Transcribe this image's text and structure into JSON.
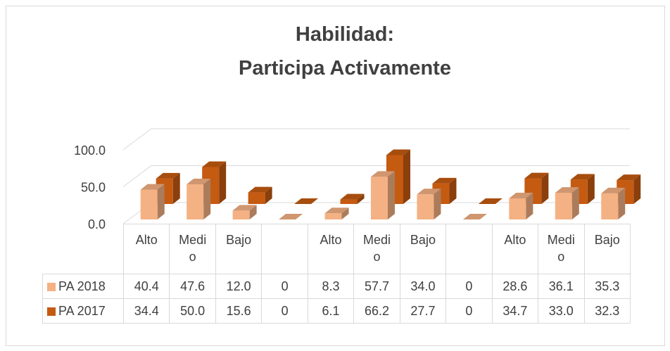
{
  "chart_data": {
    "type": "bar3d",
    "title": [
      "Habilidad:",
      "Participa Activamente"
    ],
    "categories": [
      "Alto",
      "Medio",
      "Bajo",
      null,
      "Alto",
      "Medio",
      "Bajo",
      null,
      "Alto",
      "Medio",
      "Bajo"
    ],
    "series": [
      {
        "name": "PA 2018",
        "color": "#f4b183",
        "values": [
          40.4,
          47.6,
          12.0,
          0,
          8.3,
          57.7,
          34.0,
          0,
          28.6,
          36.1,
          35.3
        ],
        "value_labels": [
          "40.4",
          "47.6",
          "12.0",
          "0",
          "8.3",
          "57.7",
          "34.0",
          "0",
          "28.6",
          "36.1",
          "35.3"
        ]
      },
      {
        "name": "PA 2017",
        "color": "#c55a11",
        "values": [
          34.4,
          50.0,
          15.6,
          0,
          6.1,
          66.2,
          27.7,
          0,
          34.7,
          33.0,
          32.3
        ],
        "value_labels": [
          "34.4",
          "50.0",
          "15.6",
          "0",
          "6.1",
          "66.2",
          "27.7",
          "0",
          "34.7",
          "33.0",
          "32.3"
        ]
      }
    ],
    "ylim": [
      0,
      100
    ],
    "yticks": [
      {
        "value": 0,
        "label": "0.0"
      },
      {
        "value": 50,
        "label": "50.0"
      },
      {
        "value": 100,
        "label": "100.0"
      }
    ],
    "grid": true
  }
}
